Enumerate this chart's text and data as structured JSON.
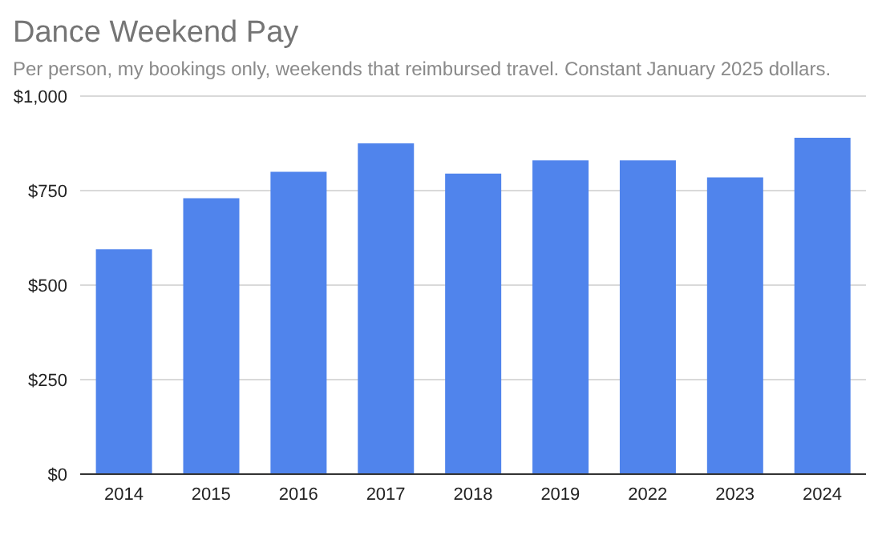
{
  "chart_data": {
    "type": "bar",
    "title": "Dance Weekend Pay",
    "subtitle": "Per person, my bookings only, weekends that reimbursed travel.  Constant January 2025 dollars.",
    "categories": [
      "2014",
      "2015",
      "2016",
      "2017",
      "2018",
      "2019",
      "2022",
      "2023",
      "2024"
    ],
    "values": [
      595,
      730,
      800,
      875,
      795,
      830,
      830,
      785,
      890
    ],
    "color": "#5084ec",
    "ylim": [
      0,
      1000
    ],
    "yticks": [
      {
        "value": 0,
        "label": "$0"
      },
      {
        "value": 250,
        "label": "$250"
      },
      {
        "value": 500,
        "label": "$500"
      },
      {
        "value": 750,
        "label": "$750"
      },
      {
        "value": 1000,
        "label": "$1,000"
      }
    ],
    "grid": "y",
    "legend": false
  }
}
